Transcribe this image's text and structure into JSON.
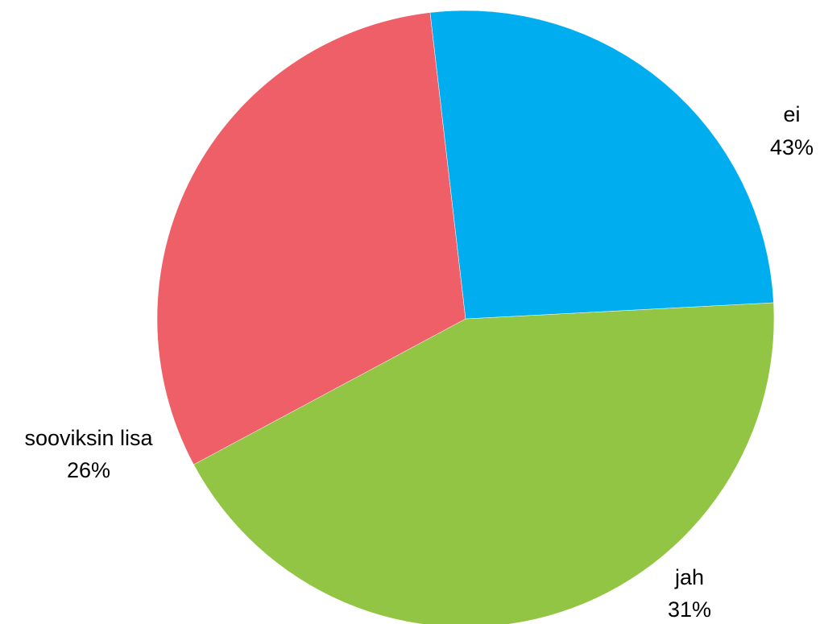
{
  "chart_data": {
    "type": "pie",
    "title": "",
    "slices": [
      {
        "label": "ei",
        "value": 43,
        "value_label": "43%",
        "color": "#92c544"
      },
      {
        "label": "jah",
        "value": 31,
        "value_label": "31%",
        "color": "#ef5f67"
      },
      {
        "label": "sooviksin lisa",
        "value": 26,
        "value_label": "26%",
        "color": "#00aeef"
      }
    ],
    "legend": "none"
  }
}
